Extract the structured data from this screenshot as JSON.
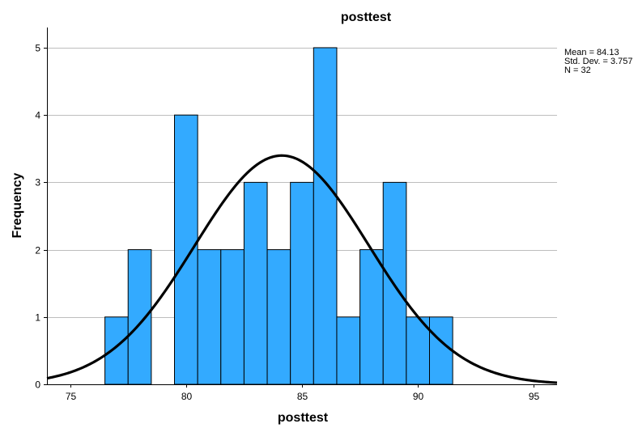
{
  "chart_data": {
    "type": "bar",
    "subtype": "histogram",
    "title": "posttest",
    "xlabel": "posttest",
    "ylabel": "Frequency",
    "xlim": [
      74,
      96
    ],
    "ylim": [
      0,
      5.3
    ],
    "x_ticks": [
      75,
      80,
      85,
      90,
      95
    ],
    "y_ticks": [
      0,
      1,
      2,
      3,
      4,
      5
    ],
    "bin_width": 1,
    "bins": [
      {
        "start": 76.5,
        "end": 77.5,
        "count": 1
      },
      {
        "start": 77.5,
        "end": 78.5,
        "count": 2
      },
      {
        "start": 79.5,
        "end": 80.5,
        "count": 4
      },
      {
        "start": 80.5,
        "end": 81.5,
        "count": 2
      },
      {
        "start": 81.5,
        "end": 82.5,
        "count": 2
      },
      {
        "start": 82.5,
        "end": 83.5,
        "count": 3
      },
      {
        "start": 83.5,
        "end": 84.5,
        "count": 2
      },
      {
        "start": 84.5,
        "end": 85.5,
        "count": 3
      },
      {
        "start": 85.5,
        "end": 86.5,
        "count": 5
      },
      {
        "start": 86.5,
        "end": 87.5,
        "count": 1
      },
      {
        "start": 87.5,
        "end": 88.5,
        "count": 2
      },
      {
        "start": 88.5,
        "end": 89.5,
        "count": 3
      },
      {
        "start": 89.5,
        "end": 90.5,
        "count": 1
      },
      {
        "start": 90.5,
        "end": 91.5,
        "count": 1
      }
    ],
    "normal_curve": {
      "mean": 84.13,
      "std_dev": 3.757,
      "n": 32
    },
    "grid": "horizontal",
    "stats_box": {
      "mean_text": "Mean = 84.13",
      "std_text": "Std. Dev. = 3.757",
      "n_text": "N = 32"
    },
    "colors": {
      "bar_fill": "#33aaff",
      "bar_stroke": "#000000",
      "curve": "#000000",
      "grid": "#bdbdbd",
      "axis": "#000000"
    }
  }
}
